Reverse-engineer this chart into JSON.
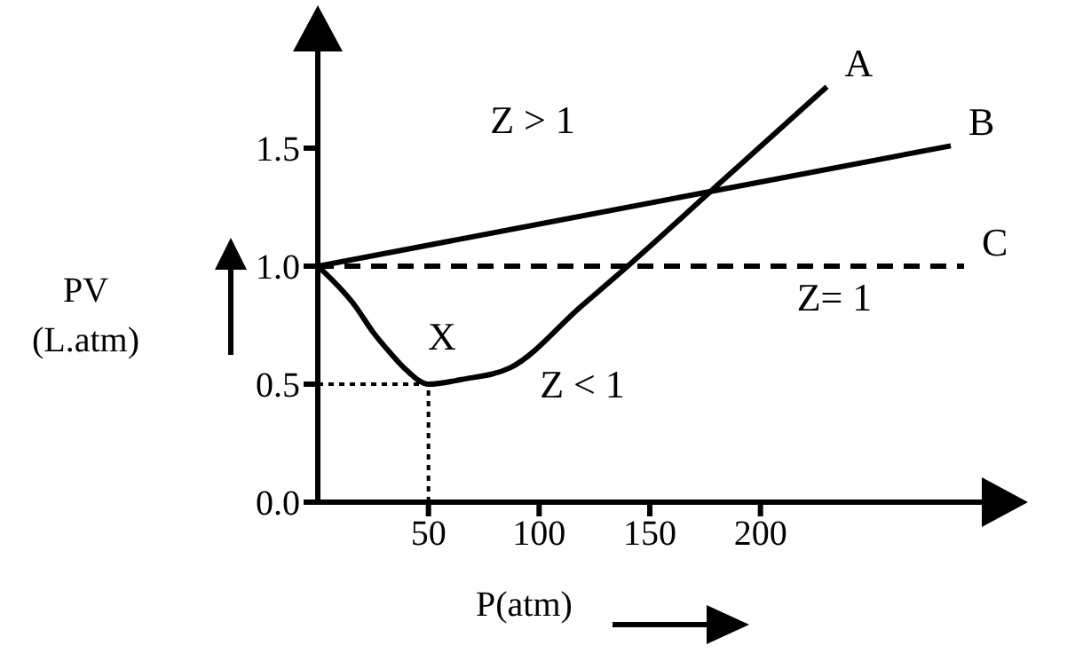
{
  "chart_data": {
    "type": "line",
    "xlabel": "P(atm)",
    "ylabel": "PV\n(L.atm)",
    "xlim": [
      0,
      300
    ],
    "xticks": [
      50,
      100,
      150,
      200
    ],
    "ylim": [
      0,
      2
    ],
    "yticks": [
      {
        "value": 0,
        "label": "0.0"
      },
      0.5,
      {
        "value": 1,
        "label": "1.0"
      },
      1.5
    ],
    "marker": "none",
    "series": [
      {
        "name": "A",
        "color": "#000000",
        "line_style": "solid",
        "x": [
          0,
          17,
          25,
          33,
          40,
          50,
          65,
          87,
          119,
          140,
          179,
          230
        ],
        "values": [
          1.0,
          0.83,
          0.72,
          0.63,
          0.56,
          0.5,
          0.52,
          0.57,
          0.83,
          1.0,
          1.33,
          1.76
        ]
      },
      {
        "name": "B",
        "color": "#000000",
        "line_style": "solid",
        "x": [
          0,
          286
        ],
        "values": [
          1.0,
          1.51
        ]
      },
      {
        "name": "C",
        "color": "#000000",
        "line_style": "dashed",
        "x": [
          0,
          292
        ],
        "values": [
          1.0,
          1.0
        ]
      },
      {
        "color": "#000000",
        "line_style": "dotted",
        "x": [
          0,
          50
        ],
        "values": [
          0.5,
          0.5
        ]
      },
      {
        "color": "#000000",
        "line_style": "dotted",
        "x": [
          50,
          50
        ],
        "values": [
          0,
          0.5
        ]
      }
    ],
    "annotations": [
      "Z > 1",
      "X",
      "Z < 1",
      "Z= 1"
    ]
  }
}
